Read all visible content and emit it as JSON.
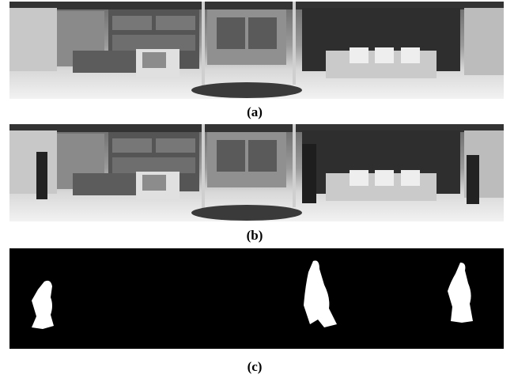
{
  "figure": {
    "captions": [
      "(a)",
      "(b)",
      "(c)"
    ]
  }
}
